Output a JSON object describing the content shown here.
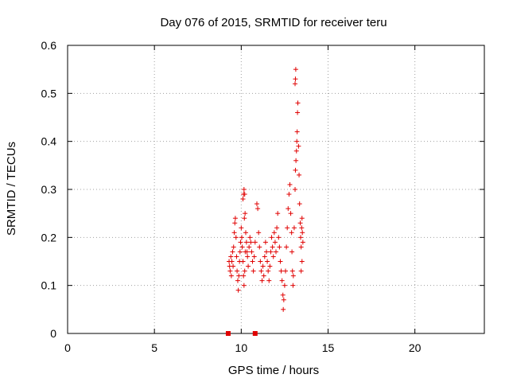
{
  "chart_data": {
    "type": "scatter",
    "title": "Day 076 of 2015, SRMTID for receiver teru",
    "xlabel": "GPS time / hours",
    "ylabel": "SRMTID / TECUs",
    "xlim": [
      0,
      24
    ],
    "ylim": [
      0,
      0.6
    ],
    "xticks": [
      0,
      5,
      10,
      15,
      20
    ],
    "yticks": [
      0,
      0.1,
      0.2,
      0.3,
      0.4,
      0.5,
      0.6
    ],
    "xtick_labels": [
      "0",
      "5",
      "10",
      "15",
      "20"
    ],
    "ytick_labels": [
      "0",
      "0.1",
      "0.2",
      "0.3",
      "0.4",
      "0.5",
      "0.6"
    ],
    "grid": true,
    "marker": "+",
    "color": "#e00000",
    "zero_markers": [
      {
        "x": 9.25,
        "y": 0.0
      },
      {
        "x": 10.8,
        "y": 0.0
      }
    ],
    "series": [
      {
        "name": "SRMTID",
        "points": [
          [
            9.3,
            0.15
          ],
          [
            9.33,
            0.14
          ],
          [
            9.36,
            0.13
          ],
          [
            9.4,
            0.16
          ],
          [
            9.43,
            0.12
          ],
          [
            9.46,
            0.15
          ],
          [
            9.5,
            0.17
          ],
          [
            9.53,
            0.14
          ],
          [
            9.56,
            0.18
          ],
          [
            9.6,
            0.21
          ],
          [
            9.63,
            0.23
          ],
          [
            9.66,
            0.24
          ],
          [
            9.7,
            0.2
          ],
          [
            9.73,
            0.16
          ],
          [
            9.76,
            0.13
          ],
          [
            9.8,
            0.11
          ],
          [
            9.83,
            0.09
          ],
          [
            9.86,
            0.12
          ],
          [
            9.9,
            0.15
          ],
          [
            9.93,
            0.17
          ],
          [
            9.96,
            0.19
          ],
          [
            10.0,
            0.22
          ],
          [
            10.03,
            0.2
          ],
          [
            10.06,
            0.18
          ],
          [
            10.1,
            0.15
          ],
          [
            10.13,
            0.12
          ],
          [
            10.16,
            0.1
          ],
          [
            10.2,
            0.13
          ],
          [
            10.23,
            0.17
          ],
          [
            10.26,
            0.21
          ],
          [
            10.1,
            0.28
          ],
          [
            10.13,
            0.29
          ],
          [
            10.16,
            0.3
          ],
          [
            10.2,
            0.29
          ],
          [
            10.18,
            0.24
          ],
          [
            10.22,
            0.25
          ],
          [
            10.3,
            0.19
          ],
          [
            10.33,
            0.17
          ],
          [
            10.36,
            0.16
          ],
          [
            10.4,
            0.14
          ],
          [
            10.45,
            0.18
          ],
          [
            10.5,
            0.2
          ],
          [
            10.55,
            0.19
          ],
          [
            10.6,
            0.17
          ],
          [
            10.65,
            0.15
          ],
          [
            10.7,
            0.13
          ],
          [
            10.75,
            0.16
          ],
          [
            10.8,
            0.19
          ],
          [
            10.9,
            0.27
          ],
          [
            10.95,
            0.26
          ],
          [
            11.0,
            0.21
          ],
          [
            11.05,
            0.18
          ],
          [
            11.1,
            0.15
          ],
          [
            11.15,
            0.13
          ],
          [
            11.2,
            0.11
          ],
          [
            11.25,
            0.14
          ],
          [
            11.3,
            0.12
          ],
          [
            11.35,
            0.16
          ],
          [
            11.4,
            0.19
          ],
          [
            11.45,
            0.17
          ],
          [
            11.5,
            0.15
          ],
          [
            11.55,
            0.13
          ],
          [
            11.6,
            0.11
          ],
          [
            11.65,
            0.14
          ],
          [
            11.7,
            0.17
          ],
          [
            11.75,
            0.2
          ],
          [
            11.8,
            0.18
          ],
          [
            11.85,
            0.16
          ],
          [
            11.9,
            0.21
          ],
          [
            11.95,
            0.19
          ],
          [
            12.0,
            0.17
          ],
          [
            12.05,
            0.22
          ],
          [
            12.1,
            0.25
          ],
          [
            12.15,
            0.2
          ],
          [
            12.2,
            0.18
          ],
          [
            12.25,
            0.15
          ],
          [
            12.3,
            0.13
          ],
          [
            12.35,
            0.11
          ],
          [
            12.4,
            0.08
          ],
          [
            12.42,
            0.05
          ],
          [
            12.45,
            0.07
          ],
          [
            12.5,
            0.1
          ],
          [
            12.55,
            0.13
          ],
          [
            12.6,
            0.18
          ],
          [
            12.65,
            0.22
          ],
          [
            12.7,
            0.26
          ],
          [
            12.75,
            0.29
          ],
          [
            12.8,
            0.31
          ],
          [
            12.85,
            0.25
          ],
          [
            12.9,
            0.21
          ],
          [
            12.92,
            0.17
          ],
          [
            12.95,
            0.13
          ],
          [
            12.98,
            0.1
          ],
          [
            13.0,
            0.12
          ],
          [
            13.05,
            0.22
          ],
          [
            13.1,
            0.3
          ],
          [
            13.12,
            0.34
          ],
          [
            13.15,
            0.36
          ],
          [
            13.18,
            0.38
          ],
          [
            13.2,
            0.4
          ],
          [
            13.22,
            0.42
          ],
          [
            13.24,
            0.46
          ],
          [
            13.26,
            0.48
          ],
          [
            13.1,
            0.52
          ],
          [
            13.12,
            0.53
          ],
          [
            13.14,
            0.55
          ],
          [
            13.3,
            0.39
          ],
          [
            13.33,
            0.33
          ],
          [
            13.36,
            0.27
          ],
          [
            13.4,
            0.23
          ],
          [
            13.42,
            0.2
          ],
          [
            13.45,
            0.18
          ],
          [
            13.48,
            0.22
          ],
          [
            13.5,
            0.24
          ],
          [
            13.52,
            0.21
          ],
          [
            13.55,
            0.19
          ],
          [
            13.5,
            0.15
          ],
          [
            13.45,
            0.13
          ]
        ]
      }
    ]
  }
}
